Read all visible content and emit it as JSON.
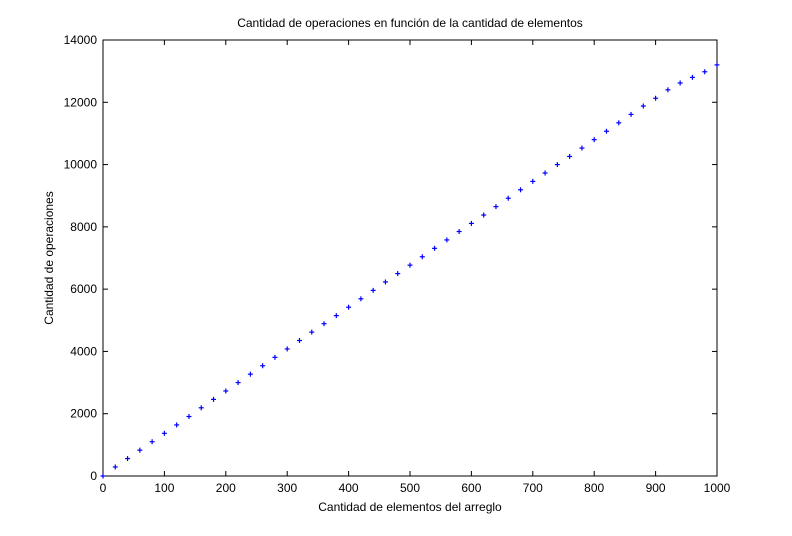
{
  "chart_data": {
    "type": "scatter",
    "title": "Cantidad de operaciones en función de la cantidad de elementos",
    "xlabel": "Cantidad de elementos del arreglo",
    "ylabel": "Cantidad de operaciones",
    "xlim": [
      0,
      1000
    ],
    "ylim": [
      0,
      14000
    ],
    "xticks": [
      "0",
      "100",
      "200",
      "300",
      "400",
      "500",
      "600",
      "700",
      "800",
      "900",
      "1000"
    ],
    "yticks": [
      "0",
      "2000",
      "4000",
      "6000",
      "8000",
      "10000",
      "12000",
      "14000"
    ],
    "grid": false,
    "marker": "+",
    "series": [
      {
        "color": "#0000ff",
        "x": [
          0,
          20,
          40,
          60,
          80,
          100,
          120,
          140,
          160,
          180,
          200,
          220,
          240,
          260,
          280,
          300,
          320,
          340,
          360,
          380,
          400,
          420,
          440,
          460,
          480,
          500,
          520,
          540,
          560,
          580,
          600,
          620,
          640,
          660,
          680,
          700,
          720,
          740,
          760,
          780,
          800,
          820,
          840,
          860,
          880,
          900,
          920,
          940,
          960,
          980,
          1000
        ],
        "y": [
          0,
          290,
          560,
          830,
          1100,
          1370,
          1640,
          1910,
          2190,
          2460,
          2730,
          3000,
          3270,
          3540,
          3810,
          4080,
          4350,
          4620,
          4890,
          5150,
          5420,
          5690,
          5960,
          6230,
          6500,
          6770,
          7040,
          7310,
          7580,
          7850,
          8110,
          8380,
          8650,
          8920,
          9190,
          9460,
          9730,
          10000,
          10260,
          10530,
          10800,
          11070,
          11340,
          11610,
          11880,
          12130,
          12400,
          12620,
          12800,
          12980,
          13200
        ]
      }
    ]
  }
}
